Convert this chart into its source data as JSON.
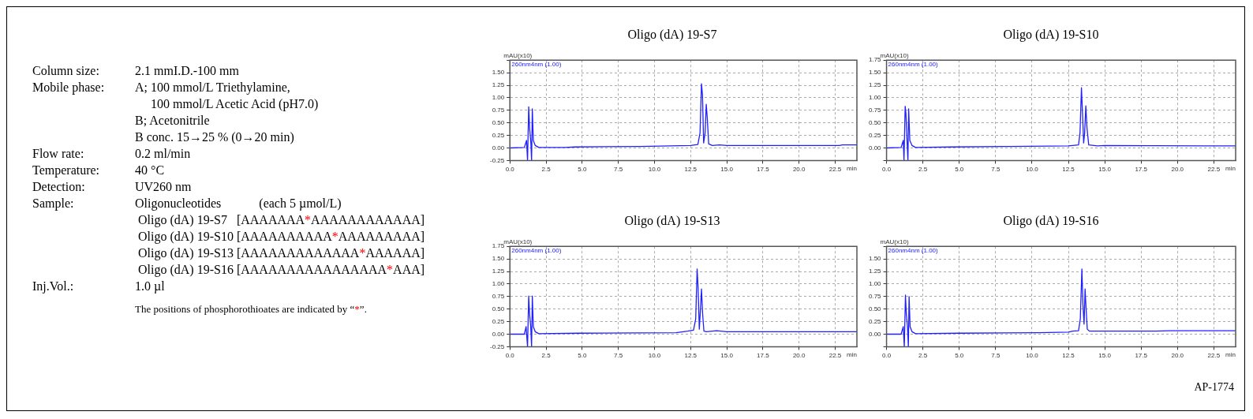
{
  "chart_data": [
    {
      "type": "other",
      "annotations": [
        "Column size:\t2.1 mmI.D.-100 mm",
        "Mobile phase:\tA; 100 mmol/L Triethylamine,",
        "\t     100 mmol/L Acetic Acid (pH7.0)",
        "\tB; Acetonitrile",
        "\tB conc. 15→25 % (0→20 min)",
        "Flow rate:\t0.2 ml/min",
        "Temperature:\t40 °C",
        "Detection:\tUV260 nm",
        "Sample:\tOligonucleotides            (each 5 µmol/L)",
        "\t Oligo (dA) 19-S7   [AAAAAAA*AAAAAAAAAAAA]",
        "\t Oligo (dA) 19-S10 [AAAAAAAAAA*AAAAAAAAA]",
        "\t Oligo (dA) 19-S13 [AAAAAAAAAAAAA*AAAAAA]",
        "\t Oligo (dA) 19-S16 [AAAAAAAAAAAAAAAA*AAA]",
        "Inj.Vol.:\t1.0 µl",
        "\tThe positions of phosphorothioates are indicated by “*”."
      ]
    },
    {
      "type": "line",
      "title": "Oligo (dA) 19-S7",
      "xlabel": "min",
      "ylabel": "mAU(x10)",
      "legend": "top left",
      "grid": true,
      "marker": "none",
      "line_style": "solid",
      "xlim": [
        0,
        24
      ],
      "xticks": [
        {
          "value": 0,
          "label": "0.0"
        },
        {
          "value": 2.5,
          "label": "2.5"
        },
        {
          "value": 5,
          "label": "5.0"
        },
        {
          "value": 7.5,
          "label": "7.5"
        },
        {
          "value": 10,
          "label": "10.0"
        },
        {
          "value": 12.5,
          "label": "12.5"
        },
        {
          "value": 15,
          "label": "15.0"
        },
        {
          "value": 17.5,
          "label": "17.5"
        },
        {
          "value": 20,
          "label": "20.0"
        },
        {
          "value": 22.5,
          "label": "22.5"
        }
      ],
      "ylim": [
        -0.25,
        1.75
      ],
      "yticks": [
        {
          "value": -0.25,
          "label": "-0.25"
        },
        {
          "value": 0,
          "label": "0.00"
        },
        {
          "value": 0.25,
          "label": "0.25"
        },
        {
          "value": 0.5,
          "label": "0.50"
        },
        {
          "value": 0.75,
          "label": "0.75"
        },
        {
          "value": 1,
          "label": "1.00"
        },
        {
          "value": 1.25,
          "label": "1.25"
        },
        {
          "value": 1.5,
          "label": "1.50"
        },
        {
          "value": 1.75,
          "label": null
        }
      ],
      "series": [
        {
          "name": "260nm4nm (1.00)",
          "color": "#2020ff",
          "x": [
            0,
            1,
            1.15,
            1.22,
            1.3,
            1.36,
            1.45,
            1.5,
            1.55,
            1.62,
            1.75,
            2,
            3.8,
            4.5,
            9,
            12.5,
            13,
            13.15,
            13.25,
            13.32,
            13.4,
            13.5,
            13.58,
            13.65,
            13.75,
            14,
            14.5,
            15,
            22.8,
            23,
            24
          ],
          "values": [
            0,
            0.01,
            0.15,
            -0.25,
            0.82,
            0.4,
            0.1,
            -0.25,
            0.78,
            0.15,
            0.05,
            0.01,
            0.01,
            0.02,
            0.03,
            0.05,
            0.07,
            0.3,
            1.28,
            1.05,
            0.1,
            0.3,
            0.87,
            0.6,
            0.08,
            0.05,
            0.06,
            0.05,
            0.05,
            0.06,
            0.06
          ]
        }
      ]
    },
    {
      "type": "line",
      "title": "Oligo (dA) 19-S10",
      "xlabel": "min",
      "ylabel": "mAU(x10)",
      "legend": "top left",
      "grid": true,
      "marker": "none",
      "line_style": "solid",
      "xlim": [
        0,
        24
      ],
      "xticks": [
        {
          "value": 0,
          "label": "0.0"
        },
        {
          "value": 2.5,
          "label": "2.5"
        },
        {
          "value": 5,
          "label": "5.0"
        },
        {
          "value": 7.5,
          "label": "7.5"
        },
        {
          "value": 10,
          "label": "10.0"
        },
        {
          "value": 12.5,
          "label": "12.5"
        },
        {
          "value": 15,
          "label": "15.0"
        },
        {
          "value": 17.5,
          "label": "17.5"
        },
        {
          "value": 20,
          "label": "20.0"
        },
        {
          "value": 22.5,
          "label": "22.5"
        }
      ],
      "ylim": [
        -0.25,
        1.75
      ],
      "yticks": [
        {
          "value": -0.25,
          "label": null
        },
        {
          "value": 0,
          "label": "0.00"
        },
        {
          "value": 0.25,
          "label": "0.25"
        },
        {
          "value": 0.5,
          "label": "0.50"
        },
        {
          "value": 0.75,
          "label": "0.75"
        },
        {
          "value": 1,
          "label": "1.00"
        },
        {
          "value": 1.25,
          "label": "1.25"
        },
        {
          "value": 1.5,
          "label": "1.50"
        },
        {
          "value": 1.75,
          "label": "1.75"
        }
      ],
      "series": [
        {
          "name": "260nm4nm (1.00)",
          "color": "#2020ff",
          "x": [
            0,
            1,
            1.15,
            1.2,
            1.28,
            1.33,
            1.4,
            1.47,
            1.52,
            1.6,
            1.75,
            2,
            4.5,
            8.5,
            12.5,
            12.8,
            13.2,
            13.3,
            13.4,
            13.47,
            13.55,
            13.62,
            13.7,
            13.78,
            13.9,
            14.5,
            15,
            22.8,
            23.5,
            24
          ],
          "values": [
            0,
            0.01,
            0.15,
            -0.25,
            0.83,
            0.7,
            0.2,
            -0.25,
            0.78,
            0.15,
            0.05,
            0.01,
            0.02,
            0.03,
            0.04,
            0.05,
            0.06,
            0.3,
            1.2,
            0.7,
            0.1,
            0.3,
            0.84,
            0.4,
            0.06,
            0.04,
            0.05,
            0.04,
            0.04,
            0.04
          ]
        }
      ]
    },
    {
      "type": "line",
      "title": "Oligo (dA) 19-S13",
      "xlabel": "min",
      "ylabel": "mAU(x10)",
      "legend": "top left",
      "grid": true,
      "marker": "none",
      "line_style": "solid",
      "xlim": [
        0,
        24
      ],
      "xticks": [
        {
          "value": 0,
          "label": "0.0"
        },
        {
          "value": 2.5,
          "label": "2.5"
        },
        {
          "value": 5,
          "label": "5.0"
        },
        {
          "value": 7.5,
          "label": "7.5"
        },
        {
          "value": 10,
          "label": "10.0"
        },
        {
          "value": 12.5,
          "label": "12.5"
        },
        {
          "value": 15,
          "label": "15.0"
        },
        {
          "value": 17.5,
          "label": "17.5"
        },
        {
          "value": 20,
          "label": "20.0"
        },
        {
          "value": 22.5,
          "label": "22.5"
        }
      ],
      "ylim": [
        -0.25,
        1.75
      ],
      "yticks": [
        {
          "value": -0.25,
          "label": "-0.25"
        },
        {
          "value": 0,
          "label": "0.00"
        },
        {
          "value": 0.25,
          "label": "0.25"
        },
        {
          "value": 0.5,
          "label": "0.50"
        },
        {
          "value": 0.75,
          "label": "0.75"
        },
        {
          "value": 1,
          "label": "1.00"
        },
        {
          "value": 1.25,
          "label": "1.25"
        },
        {
          "value": 1.5,
          "label": "1.50"
        },
        {
          "value": 1.75,
          "label": "1.75"
        }
      ],
      "series": [
        {
          "name": "260nm4nm (1.00)",
          "color": "#2020ff",
          "x": [
            0,
            1,
            1.12,
            1.22,
            1.3,
            1.36,
            1.44,
            1.5,
            1.55,
            1.62,
            1.75,
            2,
            4.8,
            11.5,
            12.3,
            12.7,
            12.85,
            12.95,
            13.02,
            13.1,
            13.18,
            13.25,
            13.33,
            13.42,
            13.6,
            14.3,
            15,
            24
          ],
          "values": [
            0,
            0,
            0.15,
            -0.25,
            0.76,
            0.4,
            0.15,
            -0.25,
            0.76,
            0.15,
            0.05,
            0.01,
            0.02,
            0.03,
            0.06,
            0.08,
            0.3,
            1.3,
            0.9,
            0.1,
            0.5,
            0.9,
            0.4,
            0.06,
            0.05,
            0.07,
            0.05,
            0.05
          ]
        }
      ]
    },
    {
      "type": "line",
      "title": "Oligo (dA) 19-S16",
      "xlabel": "min",
      "ylabel": "mAU(x10)",
      "legend": "top left",
      "grid": true,
      "marker": "none",
      "line_style": "solid",
      "xlim": [
        0,
        24
      ],
      "xticks": [
        {
          "value": 0,
          "label": "0.0"
        },
        {
          "value": 2.5,
          "label": "2.5"
        },
        {
          "value": 5,
          "label": "5.0"
        },
        {
          "value": 7.5,
          "label": "7.5"
        },
        {
          "value": 10,
          "label": "10.0"
        },
        {
          "value": 12.5,
          "label": "12.5"
        },
        {
          "value": 15,
          "label": "15.0"
        },
        {
          "value": 17.5,
          "label": "17.5"
        },
        {
          "value": 20,
          "label": "20.0"
        },
        {
          "value": 22.5,
          "label": "22.5"
        }
      ],
      "ylim": [
        -0.25,
        1.75
      ],
      "yticks": [
        {
          "value": -0.25,
          "label": null
        },
        {
          "value": 0,
          "label": "0.00"
        },
        {
          "value": 0.25,
          "label": "0.25"
        },
        {
          "value": 0.5,
          "label": "0.50"
        },
        {
          "value": 0.75,
          "label": "0.75"
        },
        {
          "value": 1,
          "label": "1.00"
        },
        {
          "value": 1.25,
          "label": "1.25"
        },
        {
          "value": 1.5,
          "label": "1.50"
        },
        {
          "value": 1.75,
          "label": null
        }
      ],
      "series": [
        {
          "name": "260nm4nm (1.00)",
          "color": "#2020ff",
          "x": [
            0,
            1,
            1.15,
            1.22,
            1.3,
            1.36,
            1.44,
            1.5,
            1.55,
            1.62,
            1.75,
            2,
            5,
            10.5,
            12.5,
            12.8,
            13.2,
            13.32,
            13.43,
            13.5,
            13.58,
            13.65,
            13.72,
            13.8,
            13.95,
            14.5,
            15,
            18.5,
            19.5,
            24
          ],
          "values": [
            0,
            0,
            0.15,
            -0.25,
            0.78,
            0.4,
            0.15,
            -0.25,
            0.75,
            0.15,
            0.05,
            0.01,
            0.02,
            0.03,
            0.04,
            0.06,
            0.07,
            0.3,
            1.3,
            0.6,
            0.2,
            0.9,
            0.5,
            0.1,
            0.06,
            0.06,
            0.06,
            0.06,
            0.07,
            0.07
          ]
        }
      ],
      "annotations": [
        "AP-1774"
      ]
    }
  ]
}
